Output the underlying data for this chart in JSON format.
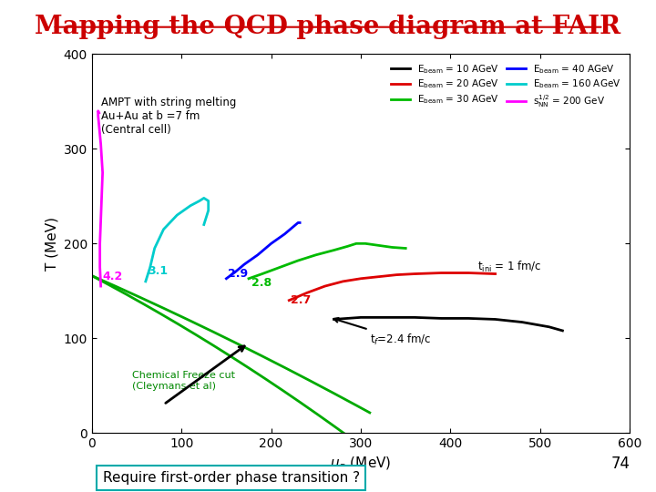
{
  "title": "Mapping the QCD phase diagram at FAIR",
  "title_color": "#cc0000",
  "title_fontsize": 20,
  "title_underline": true,
  "xlabel": "μ_q (MeV)",
  "ylabel": "T (MeV)",
  "xlim": [
    0,
    600
  ],
  "ylim": [
    0,
    400
  ],
  "bottom_text": "Require first-order phase transition ?",
  "page_number": "74",
  "annotation_text": "AMPT with string melting\nAu+Au at b =7 fm\n(Central cell)",
  "t_ini_label": "t_ini = 1 fm/c",
  "t_f_label": "t_f=2.4 fm/c",
  "freeze_label": "Chemical Freeze cut\n(Cleymans et al)",
  "freeze_color": "#008800",
  "background_color": "#ffffff"
}
